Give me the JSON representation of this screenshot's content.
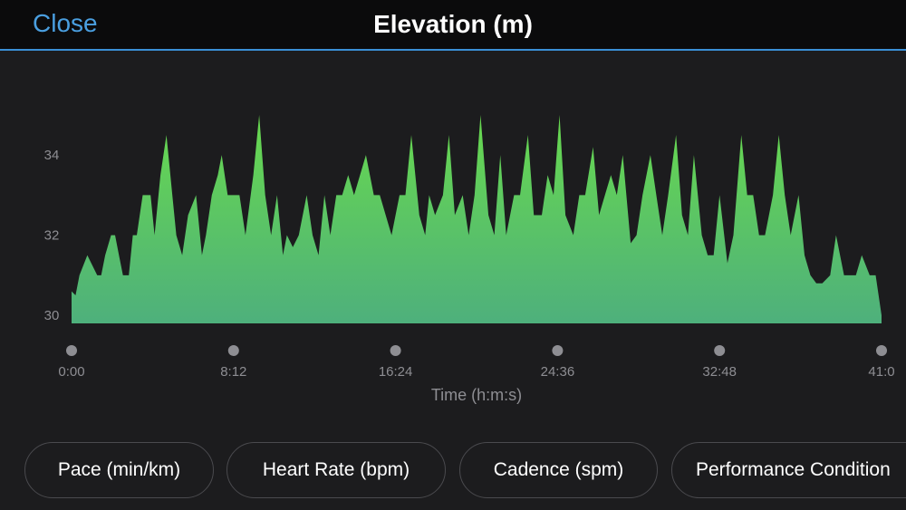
{
  "header": {
    "close_label": "Close",
    "title": "Elevation (m)"
  },
  "metrics": [
    {
      "label": "Pace (min/km)"
    },
    {
      "label": "Heart Rate (bpm)"
    },
    {
      "label": "Cadence (spm)"
    },
    {
      "label": "Performance Condition"
    }
  ],
  "colors": {
    "fill_top": "#68d94e",
    "fill_bottom": "#4eb07c",
    "accent": "#4a9fe0",
    "background": "#1c1c1e"
  },
  "chart_data": {
    "type": "area",
    "title": "Elevation (m)",
    "xlabel": "Time (h:m:s)",
    "ylabel": "",
    "ylim": [
      29.8,
      35.2
    ],
    "xlim": [
      0,
      41.0
    ],
    "grid": false,
    "y_ticks": [
      "30",
      "32",
      "34"
    ],
    "x_ticks": [
      "0:00",
      "8:12",
      "16:24",
      "24:36",
      "32:48",
      "41:0"
    ],
    "x": [
      0.0,
      0.2,
      0.4,
      0.8,
      1.3,
      1.5,
      1.7,
      2.0,
      2.2,
      2.4,
      2.6,
      2.9,
      3.1,
      3.3,
      3.6,
      4.0,
      4.2,
      4.5,
      4.8,
      5.1,
      5.3,
      5.6,
      5.9,
      6.3,
      6.6,
      6.8,
      7.1,
      7.4,
      7.6,
      7.9,
      8.2,
      8.5,
      8.8,
      9.2,
      9.5,
      9.8,
      10.1,
      10.4,
      10.7,
      10.9,
      11.2,
      11.5,
      11.9,
      12.2,
      12.5,
      12.8,
      13.1,
      13.4,
      13.7,
      14.0,
      14.3,
      14.6,
      14.9,
      15.3,
      15.6,
      15.9,
      16.2,
      16.6,
      16.9,
      17.2,
      17.6,
      17.9,
      18.1,
      18.4,
      18.8,
      19.1,
      19.4,
      19.8,
      20.1,
      20.4,
      20.7,
      21.1,
      21.4,
      21.7,
      22.0,
      22.4,
      22.7,
      23.1,
      23.4,
      23.8,
      24.1,
      24.4,
      24.7,
      25.0,
      25.4,
      25.7,
      26.0,
      26.4,
      26.7,
      27.0,
      27.3,
      27.6,
      27.9,
      28.3,
      28.6,
      28.9,
      29.3,
      29.6,
      29.9,
      30.2,
      30.6,
      30.9,
      31.2,
      31.5,
      31.9,
      32.2,
      32.5,
      32.8,
      33.2,
      33.5,
      33.9,
      34.2,
      34.5,
      34.8,
      35.1,
      35.5,
      35.8,
      36.1,
      36.4,
      36.8,
      37.1,
      37.4,
      37.7,
      38.0,
      38.4,
      38.7,
      39.1,
      39.4,
      39.7,
      40.0,
      40.4,
      40.7,
      41.0
    ],
    "values": [
      30.6,
      30.5,
      31.0,
      31.5,
      31.0,
      31.0,
      31.5,
      32.0,
      32.0,
      31.5,
      31.0,
      31.0,
      32.0,
      32.0,
      33.0,
      33.0,
      32.0,
      33.5,
      34.5,
      33.0,
      32.0,
      31.5,
      32.5,
      33.0,
      31.5,
      32.0,
      33.0,
      33.5,
      34.0,
      33.0,
      33.0,
      33.0,
      32.0,
      33.5,
      35.0,
      33.0,
      32.0,
      33.0,
      31.5,
      32.0,
      31.7,
      32.0,
      33.0,
      32.0,
      31.5,
      33.0,
      32.0,
      33.0,
      33.0,
      33.5,
      33.0,
      33.5,
      34.0,
      33.0,
      33.0,
      32.5,
      32.0,
      33.0,
      33.0,
      34.5,
      32.5,
      32.0,
      33.0,
      32.5,
      33.0,
      34.5,
      32.5,
      33.0,
      32.0,
      33.0,
      35.0,
      32.5,
      32.0,
      34.0,
      32.0,
      33.0,
      33.0,
      34.5,
      32.5,
      32.5,
      33.5,
      33.0,
      35.0,
      32.5,
      32.0,
      33.0,
      33.0,
      34.2,
      32.5,
      33.0,
      33.5,
      33.0,
      34.0,
      31.8,
      32.0,
      33.0,
      34.0,
      33.0,
      32.0,
      33.0,
      34.5,
      32.5,
      32.0,
      34.0,
      32.0,
      31.5,
      31.5,
      33.0,
      31.3,
      32.0,
      34.5,
      33.0,
      33.0,
      32.0,
      32.0,
      33.0,
      34.5,
      33.0,
      32.0,
      33.0,
      31.5,
      31.0,
      30.8,
      30.8,
      31.0,
      32.0,
      31.0,
      31.0,
      31.0,
      31.5,
      31.0,
      31.0,
      30.0
    ]
  }
}
